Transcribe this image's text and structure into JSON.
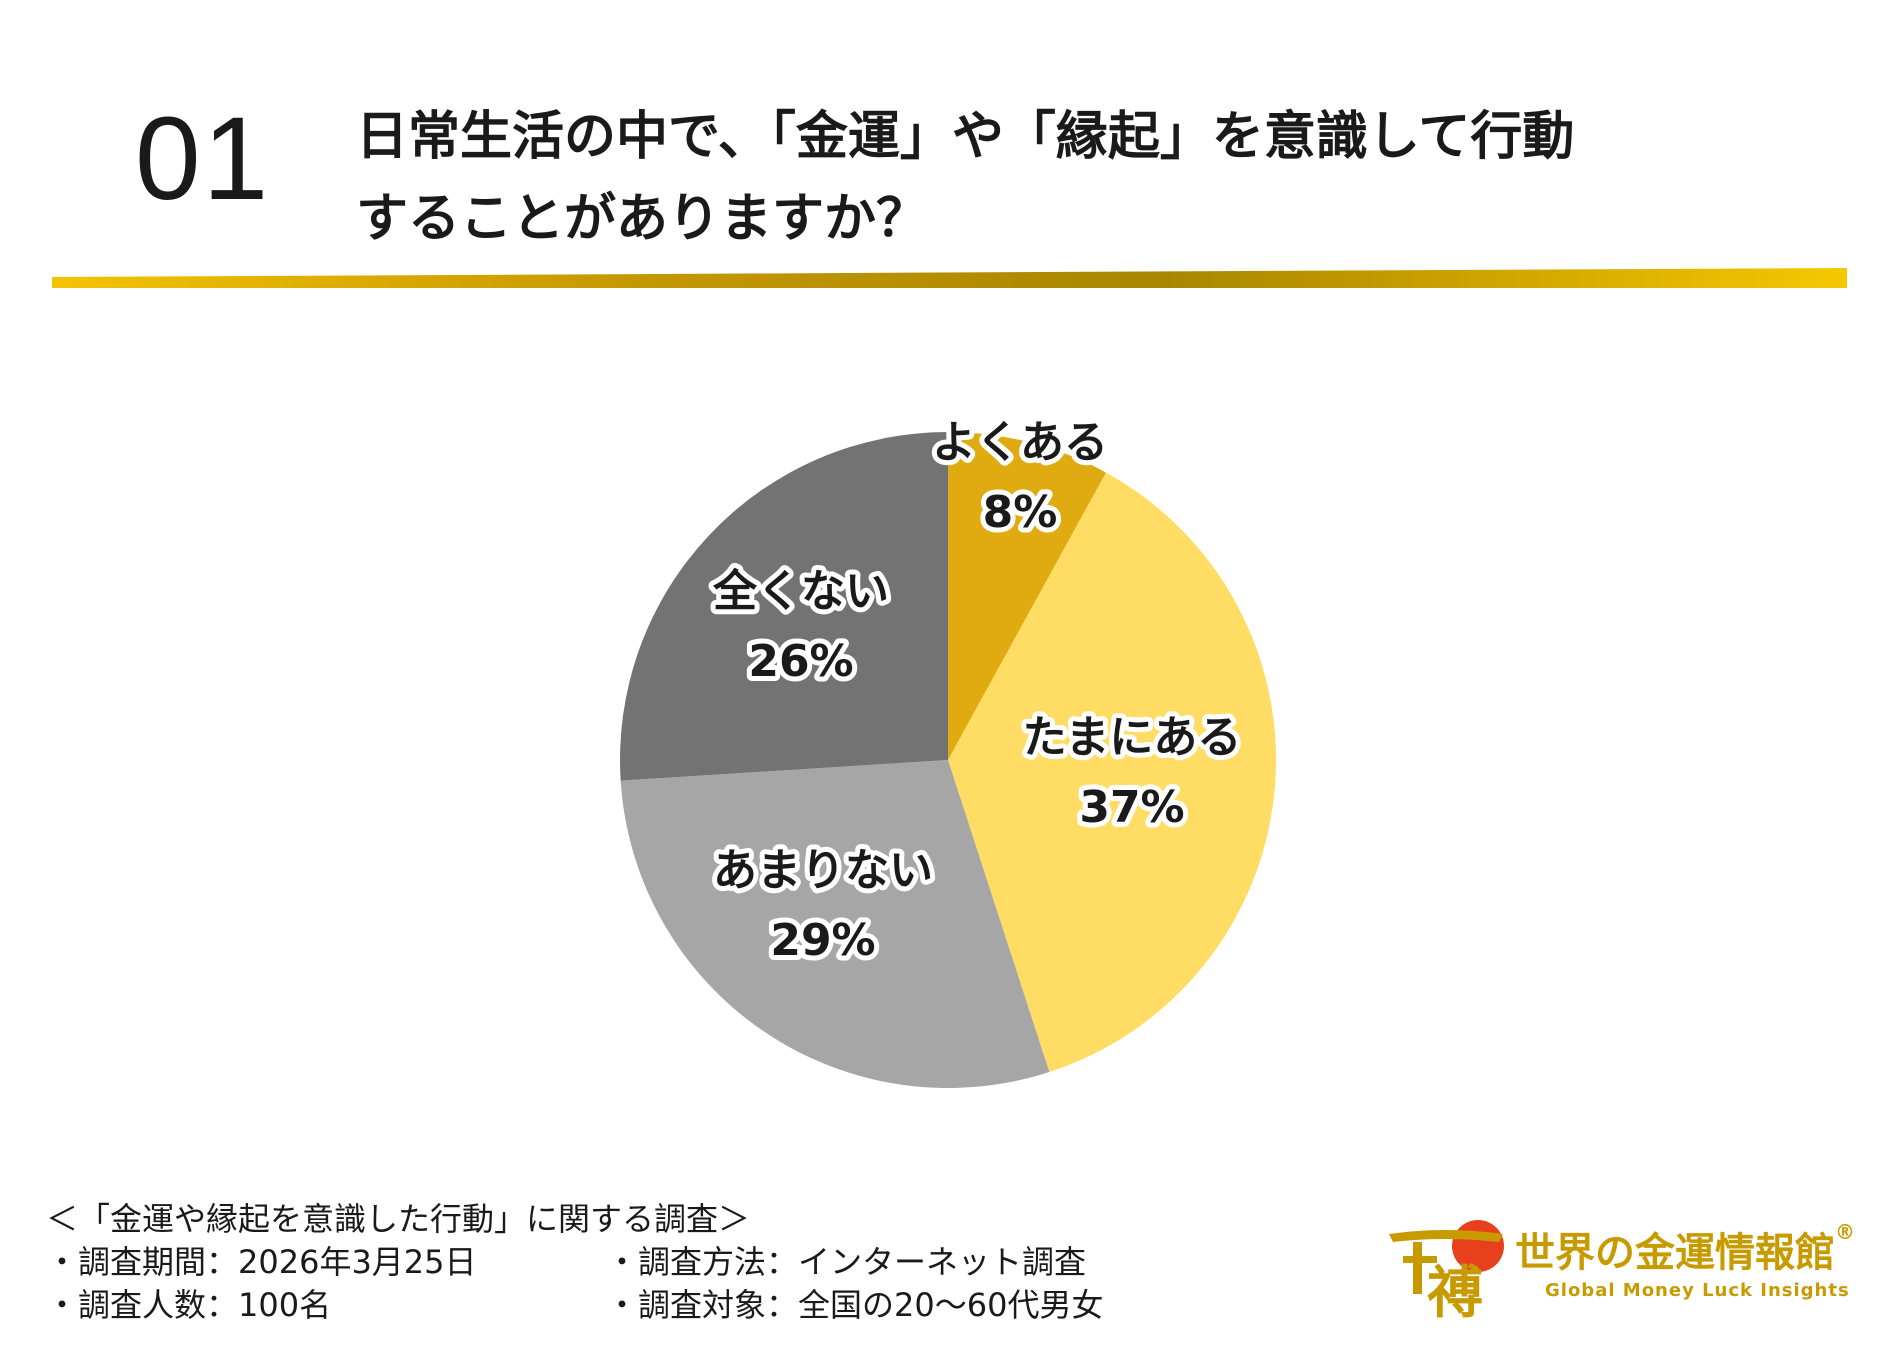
{
  "header": {
    "number": "01",
    "title_line1": "日常生活の中で、「金運」や「縁起」を意識して行動",
    "title_line2": "することがありますか？"
  },
  "chart_data": {
    "type": "pie",
    "title": "",
    "categories": [
      "よくある",
      "たまにある",
      "あまりない",
      "全くない"
    ],
    "values": [
      8,
      37,
      29,
      26
    ],
    "value_labels": [
      "8%",
      "37%",
      "29%",
      "26%"
    ],
    "colors": [
      "#e0ab10",
      "#ffdc64",
      "#a6a6a6",
      "#737373"
    ],
    "start": "12 o'clock, clockwise",
    "legend": "none"
  },
  "footer": {
    "heading": "＜「金運や縁起を意識した行動」に関する調査＞",
    "period": "・調査期間：2026年3月25日",
    "method": "・調査方法：インターネット調査",
    "count": "・調査人数：100名",
    "target": "・調査対象：全国の20〜60代男女"
  },
  "logo": {
    "name": "世界の金運情報館",
    "registered": "®",
    "tagline": "Global Money Luck Insights",
    "mark_glyph": "禣",
    "colors": {
      "gold": "#c79b00",
      "sun": "#e8401c"
    }
  }
}
